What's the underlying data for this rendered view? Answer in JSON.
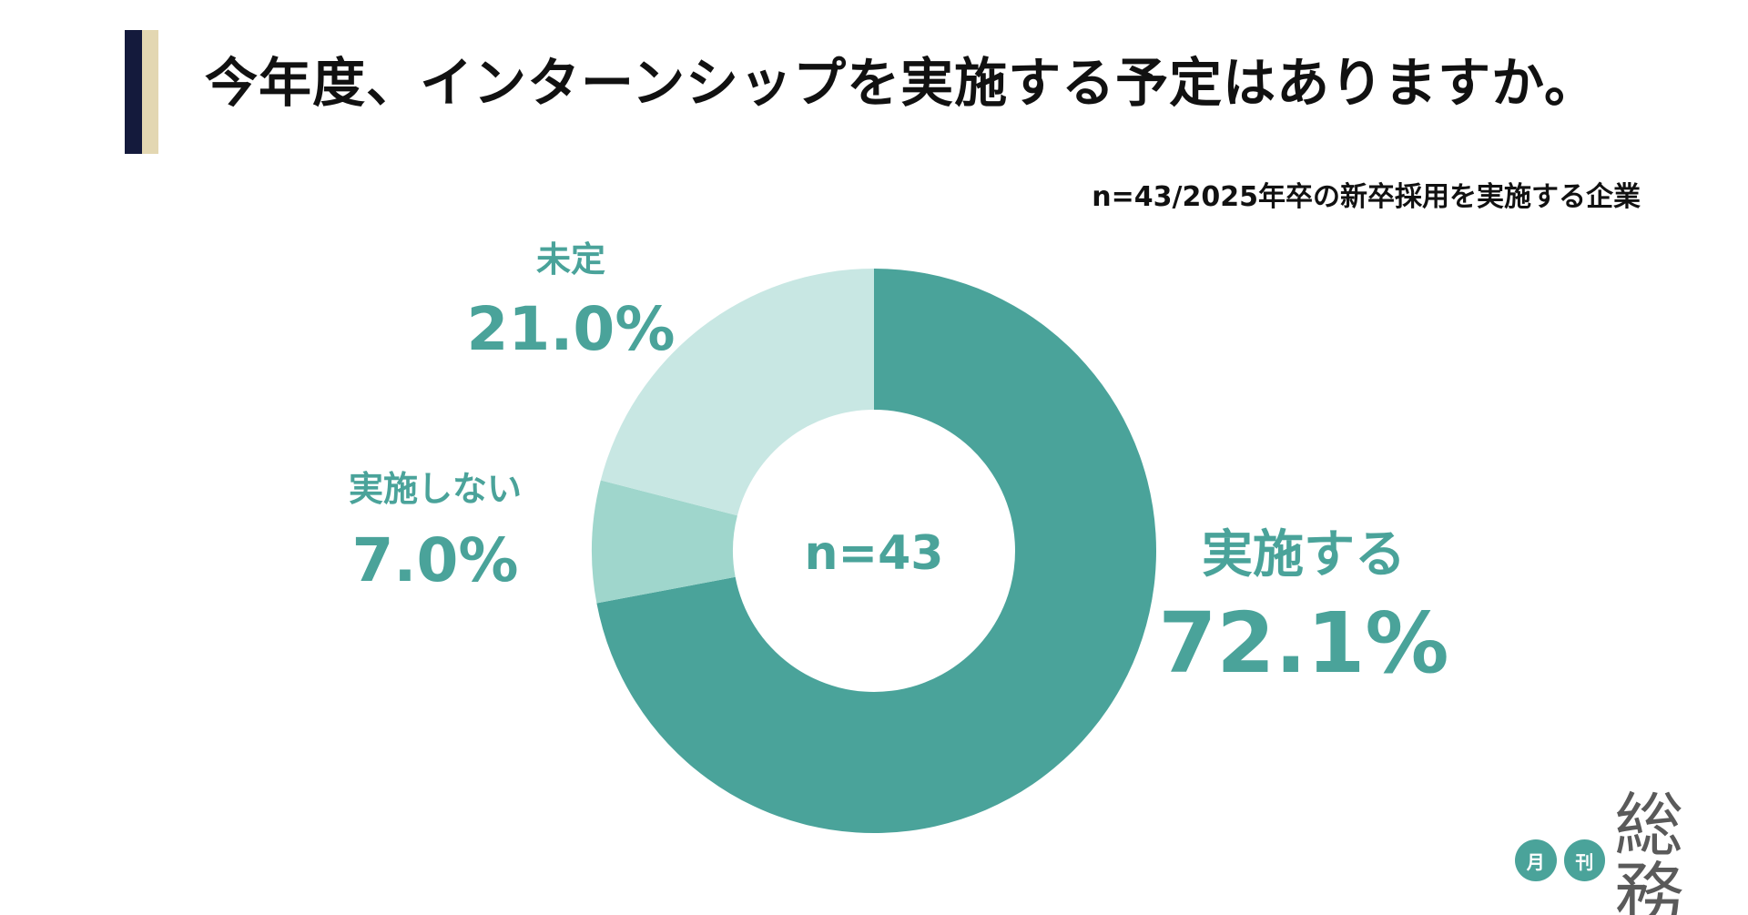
{
  "title": "今年度、インターンシップを実施する予定はありますか。",
  "subtitle": "n=43/2025年卒の新卒採用を実施する企業",
  "colors": {
    "accent_dark": "#141a3c",
    "accent_light": "#e3d7b2",
    "label_text": "#4aa39a"
  },
  "chart_data": {
    "type": "pie",
    "center_label": "n=43",
    "slices": [
      {
        "label": "実施する",
        "value": 72.1,
        "value_label": "72.1%",
        "color": "#4aa39a"
      },
      {
        "label": "実施しない",
        "value": 7.0,
        "value_label": "7.0%",
        "color": "#9fd6cc"
      },
      {
        "label": "未定",
        "value": 21.0,
        "value_label": "21.0%",
        "color": "#c8e7e3"
      }
    ]
  },
  "logo": {
    "badge_1": "月",
    "badge_2": "刊",
    "word": "総務"
  }
}
